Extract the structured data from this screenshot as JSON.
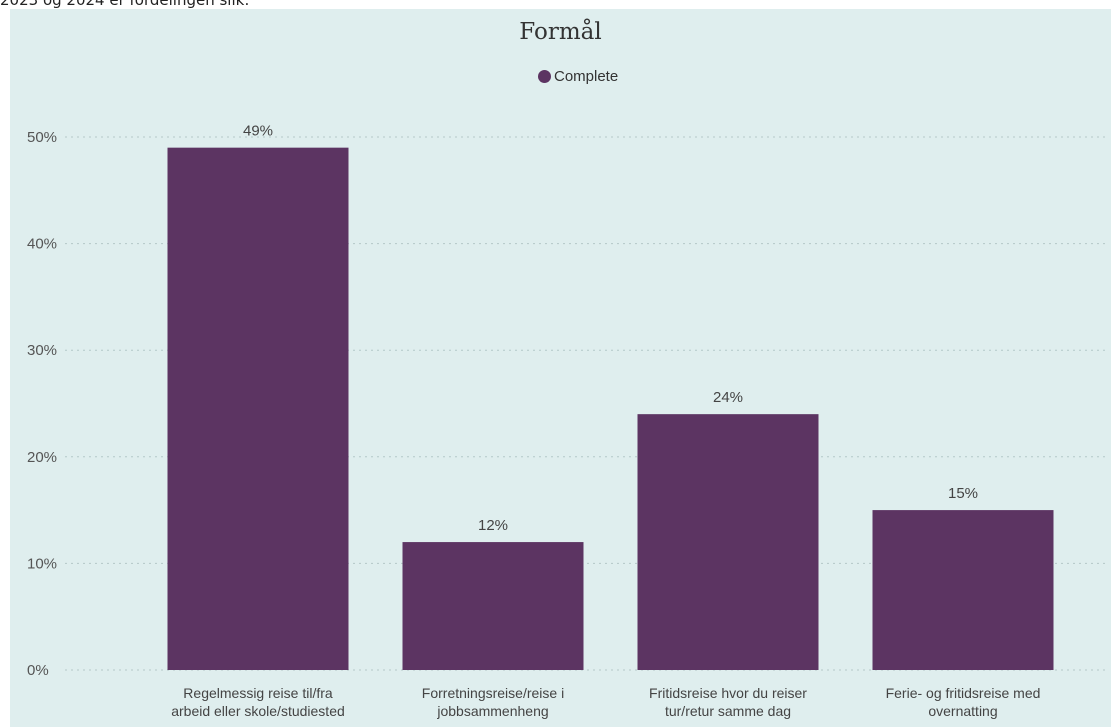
{
  "header": {
    "text": "2023 og 2024 er fordelingen slik:"
  },
  "chart_data": {
    "type": "bar",
    "title": "Formål",
    "categories": [
      [
        "Regelmessig reise til/fra",
        "arbeid eller skole/studiested"
      ],
      [
        "Forretningsreise/reise i",
        "jobbsammenheng"
      ],
      [
        "Fritidsreise hvor du reiser",
        "tur/retur samme dag"
      ],
      [
        "Ferie- og fritidsreise med",
        "overnatting"
      ]
    ],
    "series": [
      {
        "name": "Complete",
        "values": [
          49,
          12,
          24,
          15
        ],
        "labels": [
          "49%",
          "12%",
          "24%",
          "15%"
        ],
        "color": "#5c3462"
      }
    ],
    "ylim": [
      0,
      50
    ],
    "yticks": [
      0,
      10,
      20,
      30,
      40,
      50
    ],
    "ytick_labels": [
      "0%",
      "10%",
      "20%",
      "30%",
      "40%",
      "50%"
    ],
    "xlabel": "",
    "ylabel": "",
    "grid": true,
    "legend": "top-center"
  }
}
